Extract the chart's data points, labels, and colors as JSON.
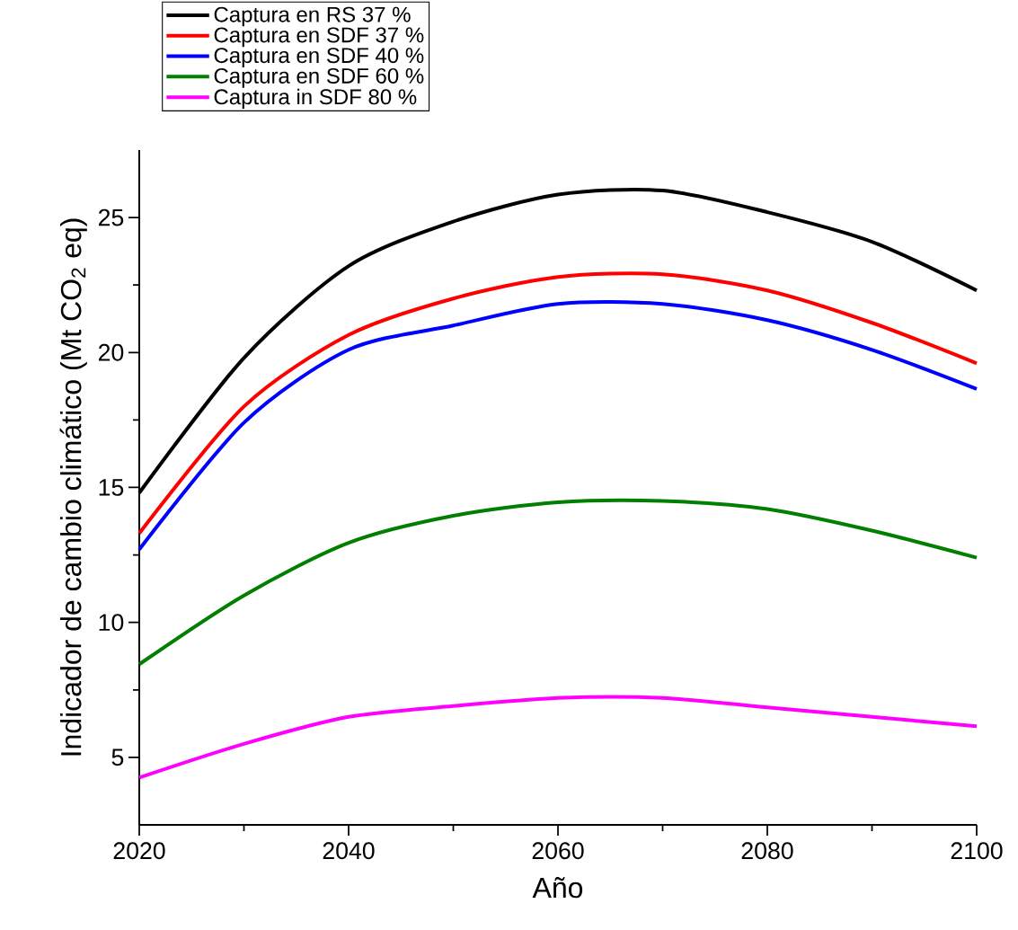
{
  "chart_data": {
    "type": "line",
    "xlabel": "Año",
    "ylabel": "Indicador de cambio climático (Mt CO$_{2}$ eq)",
    "x": [
      2020,
      2030,
      2040,
      2050,
      2060,
      2070,
      2080,
      2090,
      2100
    ],
    "xlim": [
      2020,
      2100
    ],
    "xticks": [
      2020,
      2040,
      2060,
      2080,
      2100
    ],
    "ylim": [
      2.5,
      27.5
    ],
    "yticks": [
      5,
      10,
      15,
      20,
      25
    ],
    "grid": false,
    "legend": "top left",
    "line_style": "solid",
    "marker": "none",
    "series": [
      {
        "name": "Captura en RS 37 %",
        "color": "#000000",
        "values": [
          14.8,
          19.8,
          23.2,
          24.85,
          25.85,
          26.0,
          25.2,
          24.1,
          22.3
        ]
      },
      {
        "name": "Captura en SDF 37 %",
        "color": "#ff0000",
        "values": [
          13.3,
          18.0,
          20.65,
          22.0,
          22.8,
          22.9,
          22.3,
          21.1,
          19.6
        ]
      },
      {
        "name": "Captura en SDF 40 %",
        "color": "#0000ff",
        "values": [
          12.7,
          17.4,
          20.1,
          21.0,
          21.8,
          21.8,
          21.2,
          20.1,
          18.65
        ]
      },
      {
        "name": "Captura en SDF 60 %",
        "color": "#007f00",
        "values": [
          8.45,
          11.0,
          12.95,
          13.95,
          14.45,
          14.5,
          14.2,
          13.4,
          12.4
        ]
      },
      {
        "name": "Captura in SDF 80 %",
        "color": "#ff00ff",
        "values": [
          4.25,
          5.5,
          6.5,
          6.9,
          7.2,
          7.2,
          6.85,
          6.5,
          6.15
        ]
      }
    ]
  }
}
